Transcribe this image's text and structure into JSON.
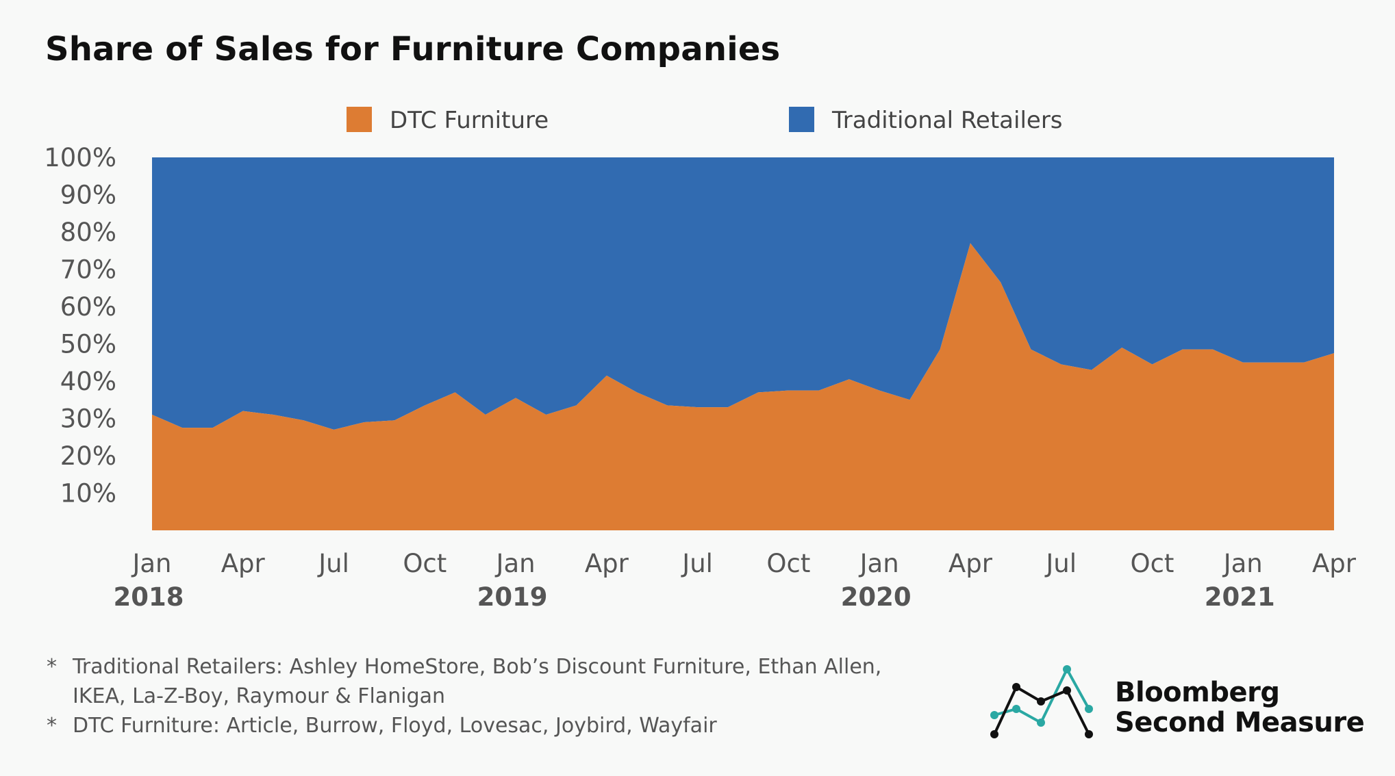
{
  "title": "Share of Sales for Furniture Companies",
  "chart_data": {
    "type": "area",
    "stacked": true,
    "normalized": true,
    "title": "Share of Sales for Furniture Companies",
    "x": [
      "2018-01",
      "2018-02",
      "2018-03",
      "2018-04",
      "2018-05",
      "2018-06",
      "2018-07",
      "2018-08",
      "2018-09",
      "2018-10",
      "2018-11",
      "2018-12",
      "2019-01",
      "2019-02",
      "2019-03",
      "2019-04",
      "2019-05",
      "2019-06",
      "2019-07",
      "2019-08",
      "2019-09",
      "2019-10",
      "2019-11",
      "2019-12",
      "2020-01",
      "2020-02",
      "2020-03",
      "2020-04",
      "2020-05",
      "2020-06",
      "2020-07",
      "2020-08",
      "2020-09",
      "2020-10",
      "2020-11",
      "2020-12",
      "2021-01",
      "2021-02",
      "2021-03",
      "2021-04"
    ],
    "x_tick_labels": [
      "Jan",
      "Apr",
      "Jul",
      "Oct",
      "Jan",
      "Apr",
      "Jul",
      "Oct",
      "Jan",
      "Apr",
      "Jul",
      "Oct",
      "Jan",
      "Apr"
    ],
    "x_tick_positions": [
      "2018-01",
      "2018-04",
      "2018-07",
      "2018-10",
      "2019-01",
      "2019-04",
      "2019-07",
      "2019-10",
      "2020-01",
      "2020-04",
      "2020-07",
      "2020-10",
      "2021-01",
      "2021-04"
    ],
    "year_labels": [
      {
        "label": "2018",
        "x": "2018-01"
      },
      {
        "label": "2019",
        "x": "2019-01"
      },
      {
        "label": "2020",
        "x": "2020-01"
      },
      {
        "label": "2021",
        "x": "2021-01"
      }
    ],
    "y_tick_labels": [
      "10%",
      "20%",
      "30%",
      "40%",
      "50%",
      "60%",
      "70%",
      "80%",
      "90%",
      "100%"
    ],
    "y_ticks": [
      10,
      20,
      30,
      40,
      50,
      60,
      70,
      80,
      90,
      100
    ],
    "ylim": [
      0,
      100
    ],
    "series": [
      {
        "name": "DTC Furniture",
        "color": "#dd7c33",
        "values": [
          31,
          27.5,
          27.5,
          32,
          31,
          29.5,
          27,
          29,
          29.5,
          33.5,
          37,
          31,
          35.5,
          31,
          33.5,
          41.5,
          37,
          33.5,
          33,
          33,
          37,
          37.5,
          37.5,
          40.5,
          37.5,
          35,
          48.5,
          77,
          66.5,
          48.5,
          44.5,
          43,
          49,
          44.5,
          48.5,
          48.5,
          45,
          45,
          45,
          47.5
        ]
      },
      {
        "name": "Traditional Retailers",
        "color": "#316bb1",
        "values": [
          69,
          72.5,
          72.5,
          68,
          69,
          70.5,
          73,
          71,
          70.5,
          66.5,
          63,
          69,
          64.5,
          69,
          66.5,
          58.5,
          63,
          66.5,
          67,
          67,
          63,
          62.5,
          62.5,
          59.5,
          62.5,
          65,
          51.5,
          23,
          33.5,
          51.5,
          55.5,
          57,
          51,
          55.5,
          51.5,
          51.5,
          55,
          55,
          55,
          52.5
        ]
      }
    ],
    "legend_position": "top",
    "grid": false
  },
  "footnotes": [
    {
      "marker": "*",
      "lines": [
        "Traditional Retailers: Ashley HomeStore, Bob’s Discount Furniture, Ethan Allen,",
        "IKEA, La-Z-Boy, Raymour & Flanigan"
      ]
    },
    {
      "marker": "*",
      "lines": [
        "DTC Furniture: Article, Burrow, Floyd, Lovesac, Joybird, Wayfair"
      ]
    }
  ],
  "logo": {
    "line1": "Bloomberg",
    "line2": "Second Measure",
    "teal": "#2aa8a3",
    "dark": "#111111"
  }
}
